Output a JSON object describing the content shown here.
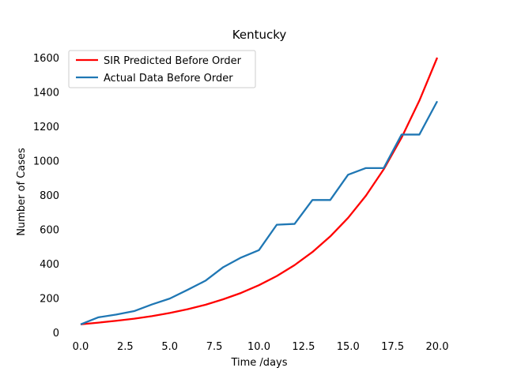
{
  "chart_data": {
    "type": "line",
    "title": "Kentucky",
    "xlabel": "Time /days",
    "ylabel": "Number of Cases",
    "xlim": [
      0,
      20
    ],
    "ylim": [
      0,
      1600
    ],
    "xticks": [
      0,
      2.5,
      5,
      7.5,
      10,
      12.5,
      15,
      17.5,
      20
    ],
    "xtick_labels": [
      "0.0",
      "2.5",
      "5.0",
      "7.5",
      "10.0",
      "12.5",
      "15.0",
      "17.5",
      "20.0"
    ],
    "yticks": [
      0,
      200,
      400,
      600,
      800,
      1000,
      1200,
      1400,
      1600
    ],
    "ytick_labels": [
      "0",
      "200",
      "400",
      "600",
      "800",
      "1000",
      "1200",
      "1400",
      "1600"
    ],
    "grid": false,
    "legend_position": "top-left",
    "series": [
      {
        "name": "SIR Predicted Before Order",
        "color": "#ff0000",
        "x": [
          0,
          1,
          2,
          3,
          4,
          5,
          6,
          7,
          8,
          9,
          10,
          11,
          12,
          13,
          14,
          15,
          16,
          17,
          18,
          19,
          20
        ],
        "values": [
          47,
          57,
          68,
          80,
          95,
          113,
          135,
          161,
          193,
          230,
          275,
          328,
          392,
          468,
          559,
          667,
          796,
          950,
          1134,
          1350,
          1600
        ]
      },
      {
        "name": "Actual Data Before Order",
        "color": "#1f77b4",
        "x": [
          0,
          1,
          2,
          3,
          4,
          5,
          6,
          7,
          8,
          9,
          10,
          11,
          12,
          13,
          14,
          15,
          16,
          17,
          18,
          19,
          20
        ],
        "values": [
          47,
          88,
          104,
          124,
          163,
          197,
          248,
          301,
          380,
          436,
          479,
          627,
          632,
          771,
          771,
          918,
          957,
          957,
          1152,
          1152,
          1346
        ]
      }
    ]
  }
}
